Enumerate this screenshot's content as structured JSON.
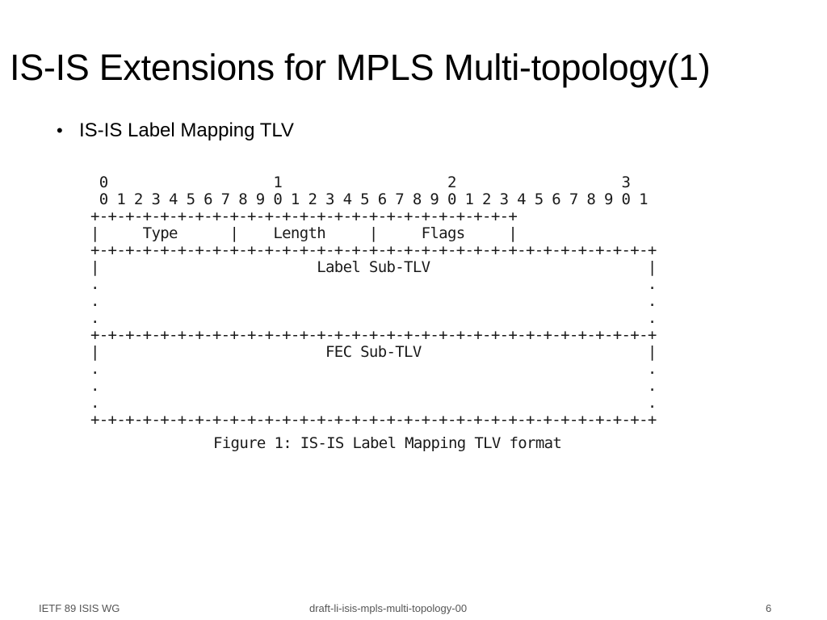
{
  "slide": {
    "title": "IS-IS Extensions for MPLS Multi-topology(1)",
    "bullets": [
      {
        "marker": "•",
        "text": "IS-IS Label Mapping TLV"
      }
    ]
  },
  "figure": {
    "diagram_text": " 0                   1                   2                   3\n 0 1 2 3 4 5 6 7 8 9 0 1 2 3 4 5 6 7 8 9 0 1 2 3 4 5 6 7 8 9 0 1\n+-+-+-+-+-+-+-+-+-+-+-+-+-+-+-+-+-+-+-+-+-+-+-+-+\n|     Type      |    Length     |     Flags     |\n+-+-+-+-+-+-+-+-+-+-+-+-+-+-+-+-+-+-+-+-+-+-+-+-+-+-+-+-+-+-+-+-+\n|                         Label Sub-TLV                         |\n.                                                               .\n.                                                               .\n.                                                               .\n+-+-+-+-+-+-+-+-+-+-+-+-+-+-+-+-+-+-+-+-+-+-+-+-+-+-+-+-+-+-+-+-+\n|                          FEC Sub-TLV                          |\n.                                                               .\n.                                                               .\n.                                                               .\n+-+-+-+-+-+-+-+-+-+-+-+-+-+-+-+-+-+-+-+-+-+-+-+-+-+-+-+-+-+-+-+-+",
    "caption": "Figure 1: IS-IS Label Mapping TLV format"
  },
  "footer": {
    "left": "IETF 89 ISIS WG",
    "center": "draft-li-isis-mpls-multi-topology-00",
    "right": "6"
  }
}
